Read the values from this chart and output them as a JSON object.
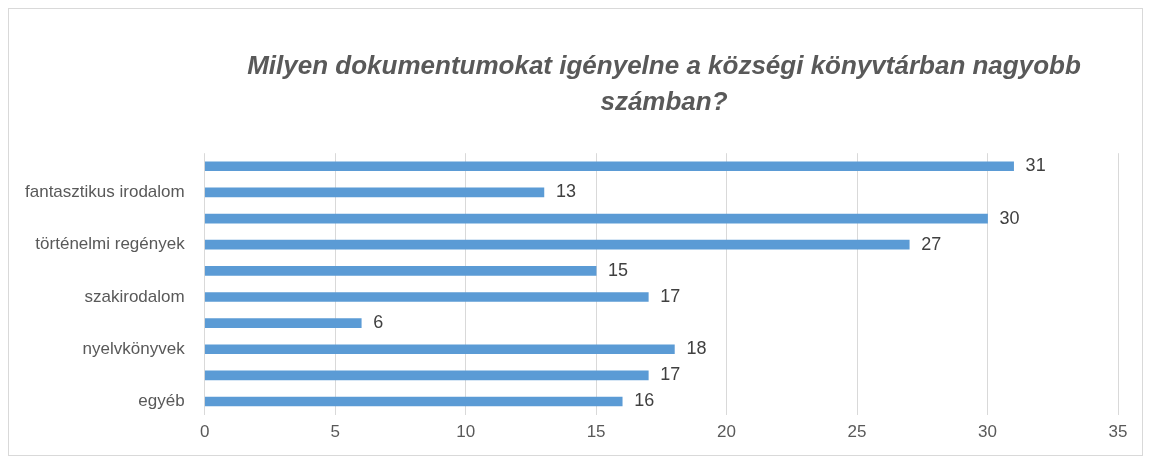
{
  "chart_data": {
    "type": "bar",
    "orientation": "horizontal",
    "title": "Milyen dokumentumokat igényelne a községi könyvtárban nagyobb számban?",
    "categories": [
      null,
      "fantasztikus irodalom",
      null,
      "történelmi regények",
      null,
      "szakirodalom",
      null,
      "nyelvkönyvek",
      null,
      "egyéb"
    ],
    "values": [
      31,
      13,
      30,
      27,
      15,
      17,
      6,
      18,
      17,
      16
    ],
    "color": "#5b9bd5",
    "xlim": [
      0,
      35
    ],
    "xticks": [
      0,
      5,
      10,
      15,
      20,
      25,
      30,
      35
    ],
    "grid": "x",
    "data_labels": true,
    "legend": false
  }
}
